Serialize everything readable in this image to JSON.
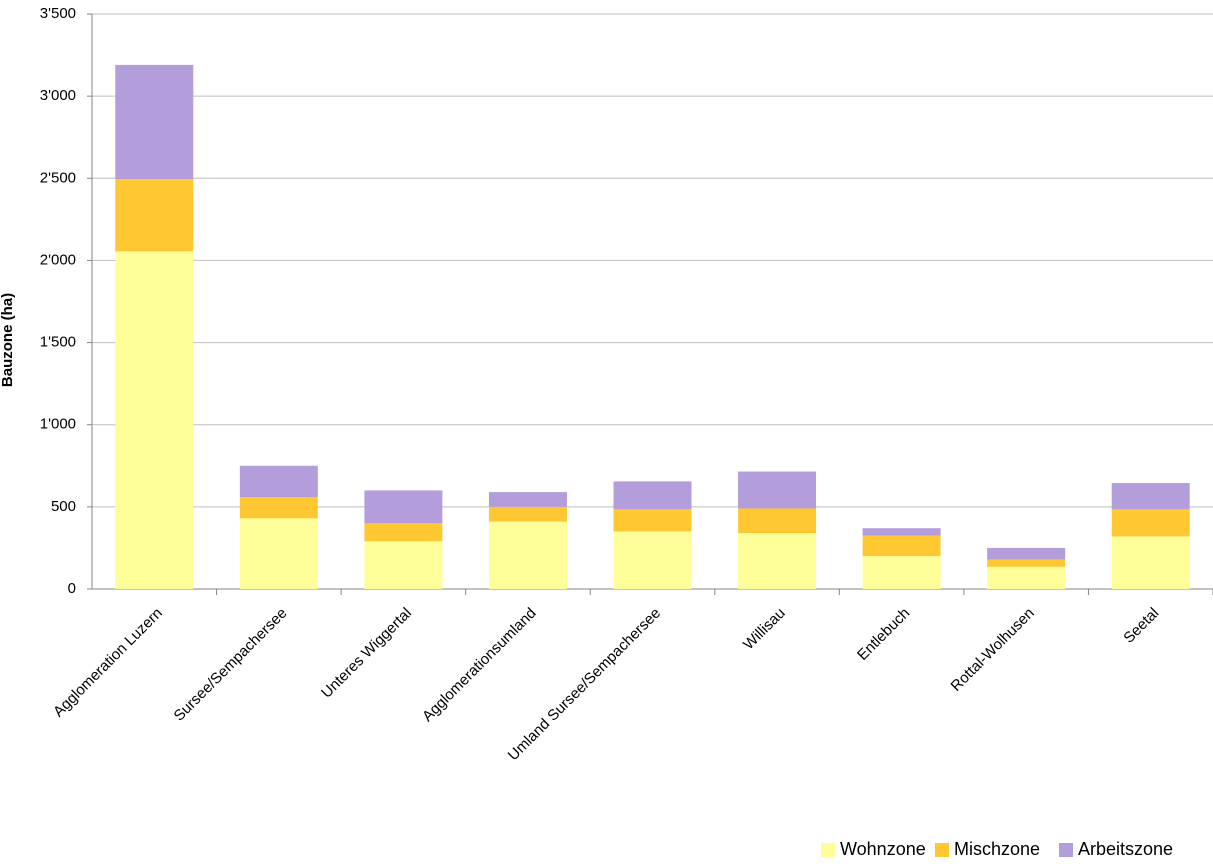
{
  "chart_data": {
    "type": "stacked-bar",
    "y_label": "Bauzone (ha)",
    "categories": [
      "Agglomeration Luzern",
      "Sursee/Sempachersee",
      "Unteres Wiggertal",
      "Agglomerationsumland",
      "Umland Sursee/Sempachersee",
      "Willisau",
      "Entlebuch",
      "Rottal-Wolhusen",
      "Seetal"
    ],
    "series": [
      {
        "name": "Wohnzone",
        "color": "#ffff99",
        "values": [
          2055,
          430,
          290,
          410,
          350,
          340,
          200,
          135,
          320
        ]
      },
      {
        "name": "Mischzone",
        "color": "#ffc832",
        "values": [
          440,
          130,
          110,
          90,
          135,
          150,
          125,
          45,
          165
        ]
      },
      {
        "name": "Arbeitszone",
        "color": "#b39ddb",
        "values": [
          695,
          190,
          200,
          90,
          170,
          225,
          45,
          70,
          160
        ]
      }
    ],
    "ylim": [
      0,
      3500
    ],
    "yticks": [
      0,
      500,
      {
        "value": 1000,
        "label": "1'000"
      },
      {
        "value": 1500,
        "label": "1'500"
      },
      {
        "value": 2000,
        "label": "2'000"
      },
      {
        "value": 2500,
        "label": "2'500"
      },
      {
        "value": 3000,
        "label": "3'000"
      },
      {
        "value": 3500,
        "label": "3'500"
      }
    ],
    "grid": true,
    "legend": "bottom-right"
  }
}
